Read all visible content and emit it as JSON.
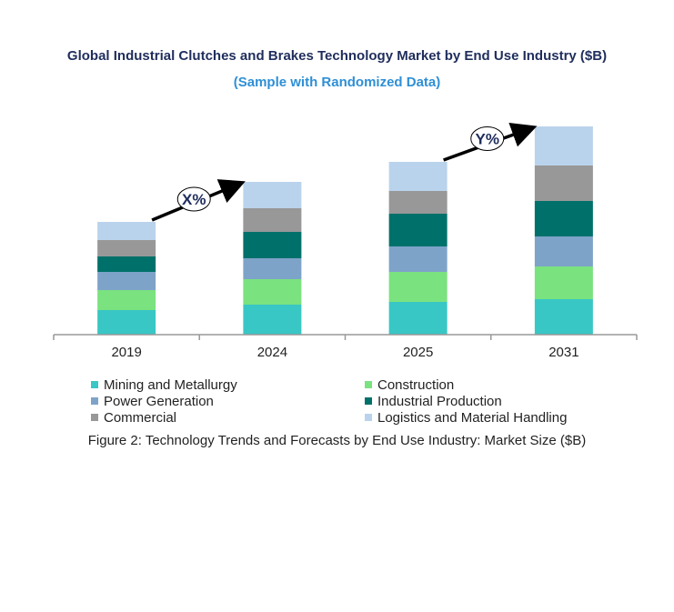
{
  "chart_data": {
    "type": "bar",
    "stacked": true,
    "title": "Global Industrial Clutches and Brakes Technology Market by End Use Industry ($B)",
    "subtitle": "(Sample with Randomized Data)",
    "categories": [
      "2019",
      "2024",
      "2025",
      "2031"
    ],
    "series": [
      {
        "name": "Mining and Metallurgy",
        "color": "#38c7c5",
        "values": [
          2.7,
          3.3,
          3.6,
          3.9
        ]
      },
      {
        "name": "Construction",
        "color": "#7ae27f",
        "values": [
          2.2,
          2.8,
          3.3,
          3.6
        ]
      },
      {
        "name": "Power Generation",
        "color": "#7ea3c9",
        "values": [
          2.0,
          2.3,
          2.8,
          3.3
        ]
      },
      {
        "name": "Industrial Production",
        "color": "#00716a",
        "values": [
          1.7,
          2.9,
          3.6,
          3.9
        ]
      },
      {
        "name": "Commercial",
        "color": "#989898",
        "values": [
          1.8,
          2.6,
          2.5,
          3.9
        ]
      },
      {
        "name": "Logistics and Material Handling",
        "color": "#bad3ec",
        "values": [
          2.0,
          2.9,
          3.2,
          4.3
        ]
      }
    ],
    "annotations": [
      {
        "text": "X%",
        "from": "2019",
        "to": "2024"
      },
      {
        "text": "Y%",
        "from": "2025",
        "to": "2031"
      }
    ],
    "y_axis_visible": false,
    "grid": false,
    "legend_position": "bottom",
    "caption": "Figure 2: Technology  Trends  and Forecasts by End Use Industry:  Market Size ($B)"
  }
}
